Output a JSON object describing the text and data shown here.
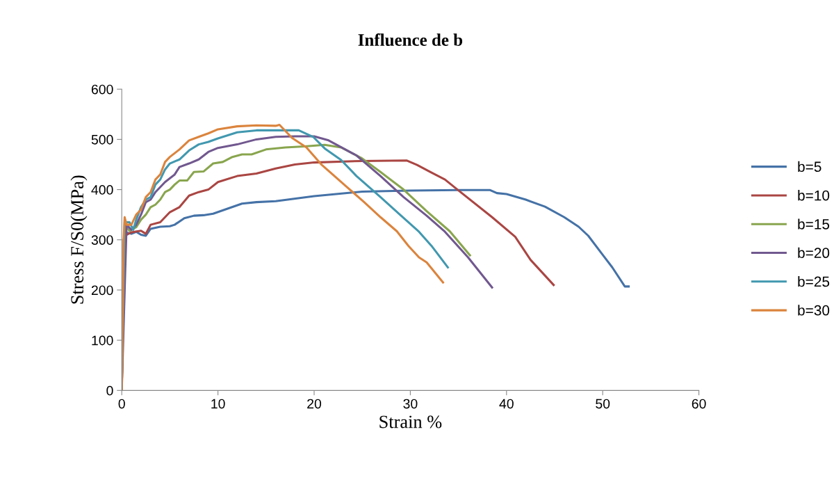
{
  "chart_data": {
    "type": "line",
    "title": "Influence de b",
    "xlabel": "Strain %",
    "ylabel": "Stress F/S0(MPa)",
    "xlim": [
      0,
      60
    ],
    "xticks": [
      0,
      10,
      20,
      30,
      40,
      50,
      60
    ],
    "ylim": [
      0,
      600
    ],
    "yticks": [
      0,
      100,
      200,
      300,
      400,
      500,
      600
    ],
    "grid": false,
    "legend": "right",
    "marker": "none",
    "line_style": "solid",
    "series": [
      {
        "name": "b=5",
        "color": "#4572a7",
        "x": [
          0,
          0.2,
          0.4,
          1,
          1.5,
          2,
          2.5,
          3,
          4,
          5,
          5.5,
          6.5,
          7.5,
          8.5,
          9.5,
          11,
          12.5,
          14,
          16,
          20,
          25,
          30,
          35,
          38.3,
          39,
          40,
          42,
          44,
          46,
          47.5,
          48.5,
          50,
          51,
          52.3,
          52.7
        ],
        "values": [
          0,
          300,
          315,
          312,
          316,
          310,
          308,
          322,
          326,
          327,
          330,
          343,
          348,
          349,
          352,
          362,
          372,
          375,
          377,
          387,
          396,
          398,
          399,
          399,
          393,
          391,
          380,
          366,
          345,
          326,
          308,
          270,
          245,
          207,
          207
        ]
      },
      {
        "name": "b=10",
        "color": "#aa4643",
        "x": [
          0,
          0.3,
          0.5,
          1,
          2,
          2.5,
          3,
          4,
          5,
          6,
          7,
          8,
          9,
          10,
          12,
          14,
          16,
          18,
          20,
          25,
          29.6,
          30.7,
          32.2,
          33.6,
          34.9,
          38.5,
          40.9,
          42.5,
          44.9
        ],
        "values": [
          0,
          320,
          310,
          315,
          318,
          312,
          330,
          335,
          355,
          365,
          388,
          395,
          400,
          415,
          427,
          432,
          442,
          450,
          454,
          457,
          458,
          449,
          434,
          420,
          400,
          345,
          306,
          260,
          210
        ]
      },
      {
        "name": "b=15",
        "color": "#89a54e",
        "x": [
          0,
          0.3,
          0.8,
          1.5,
          2,
          2.5,
          3,
          3.5,
          4,
          4.5,
          5,
          5.5,
          6,
          6.8,
          7.5,
          8.5,
          9.5,
          10.5,
          11.5,
          12.5,
          13.5,
          15,
          17,
          19,
          21.1,
          22.8,
          24.9,
          26.9,
          29.3,
          31.7,
          34.1,
          36.2
        ],
        "values": [
          0,
          330,
          318,
          325,
          340,
          350,
          365,
          370,
          380,
          395,
          400,
          410,
          418,
          418,
          435,
          436,
          452,
          455,
          465,
          470,
          470,
          480,
          484,
          486,
          489,
          484,
          463,
          435,
          400,
          357,
          317,
          269
        ]
      },
      {
        "name": "b=20",
        "color": "#71588f",
        "x": [
          0,
          0.5,
          1,
          1.5,
          2,
          2.5,
          3,
          3.5,
          4,
          4.5,
          5.5,
          6,
          7,
          8,
          9,
          10,
          12,
          14,
          16,
          18,
          20,
          21.5,
          24.4,
          26.9,
          29.3,
          31.7,
          33.6,
          36,
          38.5
        ],
        "values": [
          0,
          330,
          320,
          330,
          350,
          375,
          380,
          395,
          405,
          415,
          430,
          445,
          452,
          460,
          475,
          483,
          490,
          500,
          505,
          506,
          506,
          498,
          468,
          427,
          385,
          348,
          316,
          265,
          205
        ]
      },
      {
        "name": "b=25",
        "color": "#4198af",
        "x": [
          0,
          0.3,
          0.8,
          1.2,
          1.5,
          2,
          2.5,
          3,
          3.5,
          4,
          4.5,
          5,
          6,
          7,
          8,
          9,
          10,
          12,
          14,
          18.4,
          19.9,
          21.1,
          22.8,
          24.4,
          26.9,
          28.8,
          30.9,
          32.2,
          33.9
        ],
        "values": [
          0,
          335,
          335,
          320,
          340,
          365,
          380,
          385,
          410,
          420,
          440,
          452,
          460,
          478,
          490,
          495,
          502,
          514,
          518,
          518,
          505,
          482,
          459,
          427,
          385,
          352,
          316,
          288,
          245
        ]
      },
      {
        "name": "b=30",
        "color": "#db843d",
        "x": [
          0,
          0.2,
          0.3,
          0.5,
          1,
          1.5,
          2,
          2.5,
          3,
          3.5,
          4,
          4.5,
          5,
          6,
          7,
          8,
          9,
          10,
          12,
          14,
          16,
          16.4,
          17.7,
          19.2,
          20.8,
          23.3,
          25.2,
          26.9,
          28.6,
          29.8,
          30.9,
          31.7,
          33.4
        ],
        "values": [
          0,
          300,
          345,
          330,
          330,
          350,
          360,
          385,
          395,
          420,
          430,
          455,
          465,
          480,
          498,
          505,
          512,
          520,
          526,
          528,
          527,
          529,
          503,
          484,
          449,
          407,
          375,
          345,
          317,
          288,
          265,
          255,
          215
        ]
      }
    ]
  }
}
